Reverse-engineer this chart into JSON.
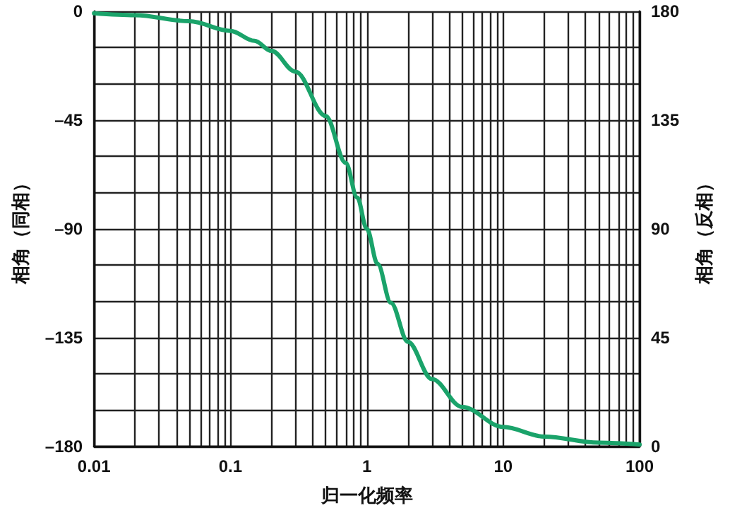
{
  "chart_data": {
    "type": "line",
    "xlabel": "归一化频率",
    "ylabel": "相角（同相）",
    "y2label": "相角（反相）",
    "log": "x",
    "grid": true,
    "marker": "none",
    "line_style": "solid",
    "xlim": [
      0.01,
      100
    ],
    "xticks": [
      {
        "value": 0.01,
        "label": "0.01"
      },
      {
        "value": 0.02,
        "label": null
      },
      {
        "value": 0.03,
        "label": null
      },
      {
        "value": 0.04,
        "label": null
      },
      {
        "value": 0.05,
        "label": null
      },
      {
        "value": 0.06,
        "label": null
      },
      {
        "value": 0.07,
        "label": null
      },
      {
        "value": 0.08,
        "label": null
      },
      {
        "value": 0.09,
        "label": null
      },
      {
        "value": 0.1,
        "label": "0.1"
      },
      {
        "value": 0.2,
        "label": null
      },
      {
        "value": 0.3,
        "label": null
      },
      {
        "value": 0.4,
        "label": null
      },
      {
        "value": 0.5,
        "label": null
      },
      {
        "value": 0.6,
        "label": null
      },
      {
        "value": 0.7,
        "label": null
      },
      {
        "value": 0.8,
        "label": null
      },
      {
        "value": 0.9,
        "label": null
      },
      1,
      {
        "value": 2,
        "label": null
      },
      {
        "value": 3,
        "label": null
      },
      {
        "value": 4,
        "label": null
      },
      {
        "value": 5,
        "label": null
      },
      {
        "value": 6,
        "label": null
      },
      {
        "value": 7,
        "label": null
      },
      {
        "value": 8,
        "label": null
      },
      {
        "value": 9,
        "label": null
      },
      10,
      {
        "value": 20,
        "label": null
      },
      {
        "value": 30,
        "label": null
      },
      {
        "value": 40,
        "label": null
      },
      {
        "value": 50,
        "label": null
      },
      {
        "value": 60,
        "label": null
      },
      {
        "value": 70,
        "label": null
      },
      {
        "value": 80,
        "label": null
      },
      {
        "value": 90,
        "label": null
      },
      100
    ],
    "ylim": [
      -180,
      0
    ],
    "yticks": [
      {
        "value": -180,
        "label": "–180"
      },
      {
        "value": -165,
        "label": null
      },
      {
        "value": -150,
        "label": null
      },
      {
        "value": -135,
        "label": "–135"
      },
      {
        "value": -120,
        "label": null
      },
      {
        "value": -105,
        "label": null
      },
      {
        "value": -90,
        "label": "–90"
      },
      {
        "value": -75,
        "label": null
      },
      {
        "value": -60,
        "label": null
      },
      {
        "value": -45,
        "label": "–45"
      },
      {
        "value": -30,
        "label": null
      },
      {
        "value": -15,
        "label": null
      },
      0
    ],
    "y2lim": [
      0,
      180
    ],
    "y2ticks": [
      0,
      45,
      90,
      135,
      180
    ],
    "series": [
      {
        "color": "#1aa36a",
        "x": [
          0.01,
          0.02,
          0.05,
          0.1,
          0.15,
          0.2,
          0.3,
          0.5,
          0.7,
          0.85,
          1,
          1.2,
          1.5,
          2,
          3,
          5,
          10,
          20,
          50,
          100
        ],
        "values": [
          -0.8,
          -1.6,
          -4.1,
          -8.1,
          -12.2,
          -16.4,
          -25,
          -43.3,
          -62.7,
          -77,
          -90,
          -104.5,
          -120.5,
          -136.7,
          -152.1,
          -163.6,
          -171.9,
          -175.9,
          -178.4,
          -179.2
        ]
      }
    ]
  }
}
